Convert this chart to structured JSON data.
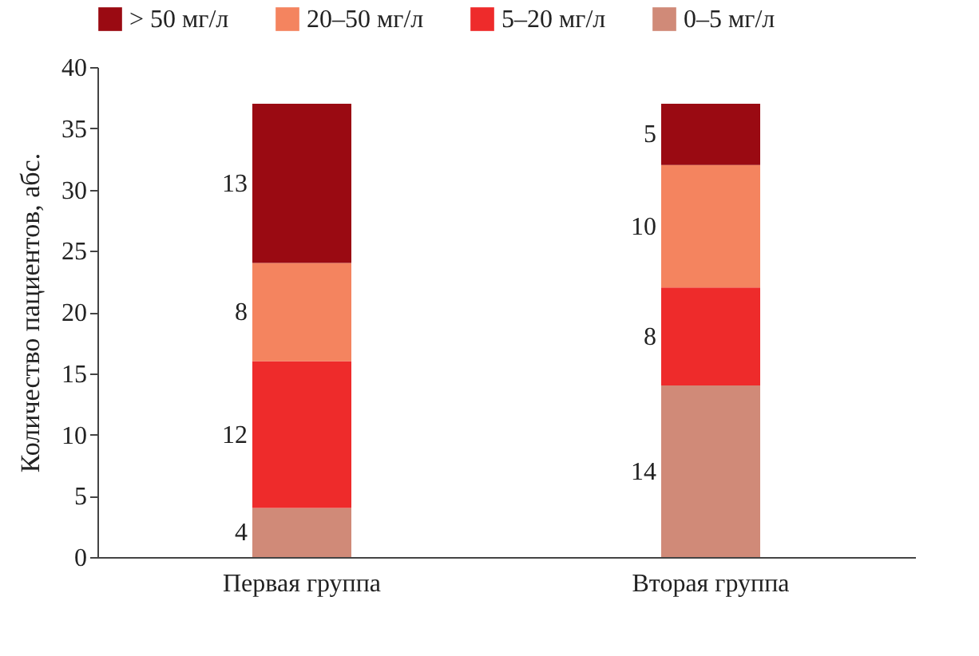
{
  "chart_data": {
    "type": "bar",
    "stacked": true,
    "ylabel": "Количество пациентов, абс.",
    "categories": [
      "Первая группа",
      "Вторая группа"
    ],
    "series": [
      {
        "name": "0–5 мг/л",
        "color": "#d08a78",
        "values": [
          4,
          14
        ]
      },
      {
        "name": "5–20 мг/л",
        "color": "#ee2b2b",
        "values": [
          12,
          8
        ]
      },
      {
        "name": "20–50 мг/л",
        "color": "#f4845f",
        "values": [
          8,
          10
        ]
      },
      {
        "name": "> 50 мг/л",
        "color": "#9a0a12",
        "values": [
          13,
          5
        ]
      }
    ],
    "ylim": [
      0,
      40
    ],
    "yticks": [
      0,
      5,
      10,
      15,
      20,
      25,
      30,
      35,
      40
    ],
    "data_labels": true,
    "legend": "top",
    "grid": false
  }
}
